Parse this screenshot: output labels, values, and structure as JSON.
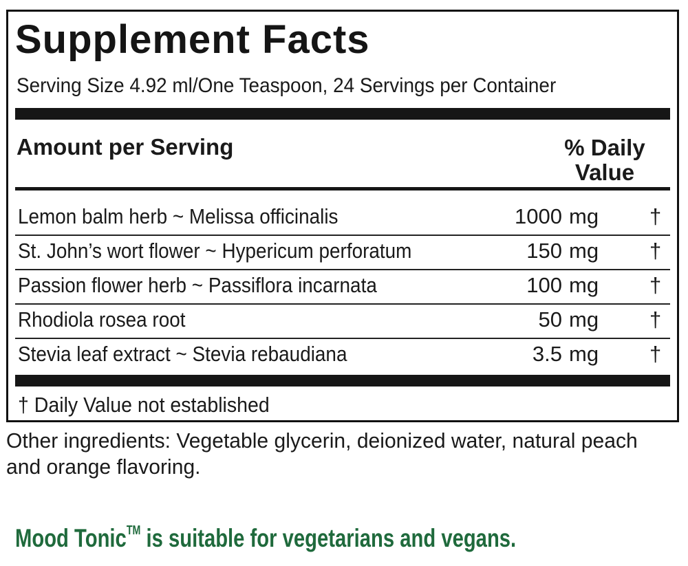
{
  "panel": {
    "title": "Supplement Facts",
    "serving": "Serving Size 4.92 ml/One Teaspoon, 24 Servings per Container",
    "amount_header": "Amount per Serving",
    "dv_header_line1": "% Daily",
    "dv_header_line2": "Value",
    "ingredients": [
      {
        "name": "Lemon balm herb ~ Melissa officinalis",
        "amount": "1000",
        "unit": "mg",
        "dv": "†"
      },
      {
        "name": "St. John’s wort flower ~ Hypericum perforatum",
        "amount": "150",
        "unit": "mg",
        "dv": "†"
      },
      {
        "name": "Passion flower herb ~ Passiflora incarnata",
        "amount": "100",
        "unit": "mg",
        "dv": "†"
      },
      {
        "name": "Rhodiola rosea root",
        "amount": "50",
        "unit": "mg",
        "dv": "†"
      },
      {
        "name": "Stevia leaf extract ~ Stevia rebaudiana",
        "amount": "3.5",
        "unit": "mg",
        "dv": "†"
      }
    ],
    "footnote": "†  Daily Value not established"
  },
  "other_ingredients": "Other ingredients: Vegetable glycerin, deionized water, natural peach and orange flavoring.",
  "tagline": {
    "product": "Mood Tonic",
    "trademark": "TM",
    "rest": " is suitable for vegetarians and vegans."
  },
  "colors": {
    "tagline": "#1f6a3c",
    "rule": "#161616"
  }
}
